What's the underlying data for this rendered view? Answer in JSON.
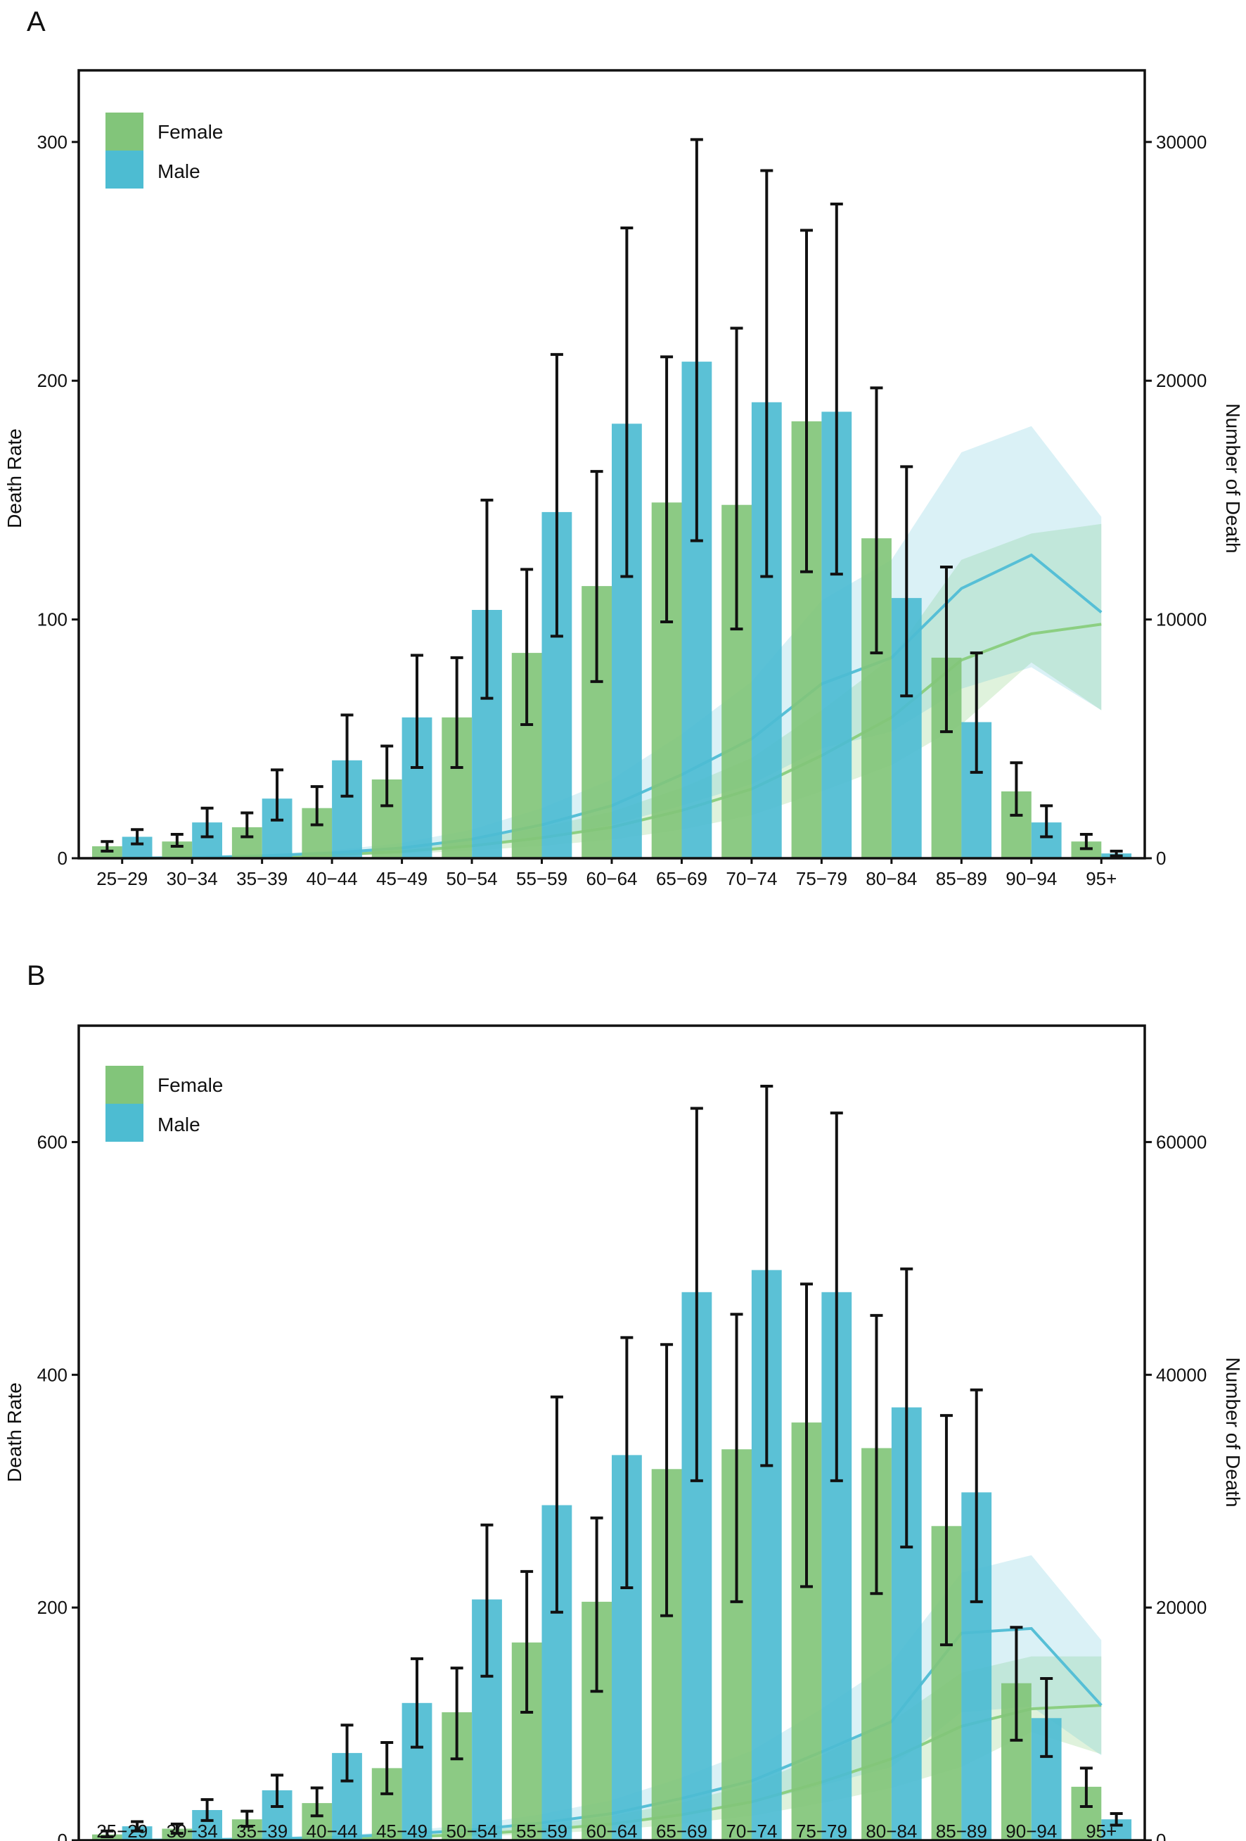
{
  "chart_data": [
    {
      "panel_label": "A",
      "type": "bar",
      "categories": [
        "25−29",
        "30−34",
        "35−39",
        "40−44",
        "45−49",
        "50−54",
        "55−59",
        "60−64",
        "65−69",
        "70−74",
        "75−79",
        "80−84",
        "85−89",
        "90−94",
        "95+"
      ],
      "ylabel": "Death Rate",
      "ylabel_right": "Number of Death",
      "ylim": [
        0,
        330
      ],
      "yticks": [
        0,
        100,
        200,
        300
      ],
      "ylim_right": [
        0,
        33000
      ],
      "yticks_right": [
        0,
        10000,
        20000,
        30000
      ],
      "legend": {
        "position": "top-left",
        "entries": [
          "Female",
          "Male"
        ]
      },
      "colors": {
        "female_bar": "#82c57a",
        "male_bar": "#4dbcd2",
        "female_line": "#8ccf82",
        "male_line": "#56bfd6",
        "error_bar": "#111111"
      },
      "series": [
        {
          "name": "Female",
          "values": [
            5,
            7,
            13,
            21,
            33,
            59,
            86,
            114,
            149,
            148,
            183,
            134,
            84,
            28,
            7
          ],
          "lower": [
            3,
            5,
            9,
            14,
            22,
            38,
            56,
            74,
            99,
            96,
            120,
            86,
            53,
            18,
            4
          ],
          "upper": [
            7,
            10,
            19,
            30,
            47,
            84,
            121,
            162,
            210,
            222,
            263,
            197,
            122,
            40,
            10
          ]
        },
        {
          "name": "Male",
          "values": [
            9,
            15,
            25,
            41,
            59,
            104,
            145,
            182,
            208,
            191,
            187,
            109,
            57,
            15,
            2
          ],
          "lower": [
            6,
            9,
            16,
            26,
            38,
            67,
            93,
            118,
            133,
            118,
            119,
            68,
            36,
            9,
            1
          ],
          "upper": [
            12,
            21,
            37,
            60,
            85,
            150,
            211,
            264,
            301,
            288,
            274,
            164,
            86,
            22,
            3
          ]
        }
      ],
      "line_series": [
        {
          "name": "Female",
          "values": [
            0,
            20,
            60,
            140,
            280,
            520,
            860,
            1300,
            2000,
            2900,
            4300,
            5900,
            8300,
            9400,
            9800
          ],
          "lower": [
            0,
            12,
            40,
            90,
            180,
            320,
            520,
            780,
            1200,
            1800,
            2800,
            3900,
            5600,
            8200,
            6200
          ],
          "upper": [
            0,
            30,
            90,
            210,
            420,
            780,
            1300,
            1950,
            2950,
            4200,
            6200,
            8400,
            12500,
            13600,
            14000
          ]
        },
        {
          "name": "Male",
          "values": [
            0,
            30,
            100,
            220,
            430,
            800,
            1400,
            2200,
            3500,
            5000,
            7300,
            8400,
            11300,
            12700,
            10300
          ],
          "lower": [
            0,
            18,
            60,
            140,
            270,
            500,
            880,
            1400,
            2200,
            3100,
            4600,
            5300,
            7100,
            8000,
            6200
          ],
          "upper": [
            0,
            45,
            150,
            330,
            640,
            1200,
            2100,
            3300,
            5200,
            7400,
            10800,
            12500,
            17000,
            18100,
            14300
          ]
        }
      ]
    },
    {
      "panel_label": "B",
      "type": "bar",
      "categories": [
        "25−29",
        "30−34",
        "35−39",
        "40−44",
        "45−49",
        "50−54",
        "55−59",
        "60−64",
        "65−69",
        "70−74",
        "75−79",
        "80−84",
        "85−89",
        "90−94",
        "95+"
      ],
      "ylabel": "Death Rate",
      "ylabel_right": "Number of Death",
      "ylim": [
        0,
        700
      ],
      "yticks": [
        0,
        200,
        400,
        600
      ],
      "ylim_right": [
        0,
        70000
      ],
      "yticks_right": [
        0,
        20000,
        40000,
        60000
      ],
      "legend": {
        "position": "top-left",
        "entries": [
          "Female",
          "Male"
        ]
      },
      "colors": {
        "female_bar": "#82c57a",
        "male_bar": "#4dbcd2",
        "female_line": "#8ccf82",
        "male_line": "#56bfd6",
        "error_bar": "#111111"
      },
      "series": [
        {
          "name": "Female",
          "values": [
            5,
            10,
            18,
            32,
            62,
            110,
            170,
            205,
            319,
            336,
            359,
            337,
            270,
            135,
            46
          ],
          "lower": [
            3,
            6,
            12,
            21,
            40,
            70,
            110,
            128,
            193,
            205,
            218,
            212,
            168,
            86,
            29
          ],
          "upper": [
            8,
            14,
            25,
            45,
            84,
            148,
            231,
            277,
            426,
            452,
            478,
            451,
            365,
            183,
            62
          ]
        },
        {
          "name": "Male",
          "values": [
            12,
            26,
            43,
            75,
            118,
            207,
            288,
            331,
            471,
            490,
            471,
            372,
            299,
            105,
            18
          ],
          "lower": [
            8,
            17,
            29,
            51,
            80,
            141,
            196,
            217,
            309,
            322,
            309,
            252,
            205,
            72,
            13
          ],
          "upper": [
            16,
            35,
            56,
            99,
            156,
            271,
            381,
            432,
            629,
            648,
            625,
            491,
            387,
            139,
            23
          ]
        }
      ],
      "line_series": [
        {
          "name": "Female",
          "values": [
            0,
            20,
            60,
            130,
            270,
            520,
            900,
            1400,
            2200,
            3300,
            5000,
            7000,
            9800,
            11300,
            11600
          ],
          "lower": [
            0,
            12,
            40,
            80,
            170,
            320,
            560,
            880,
            1400,
            2100,
            3200,
            4500,
            6300,
            9300,
            7400
          ],
          "upper": [
            0,
            30,
            90,
            200,
            400,
            770,
            1330,
            2080,
            3260,
            4800,
            7300,
            10200,
            14400,
            15800,
            15800
          ]
        },
        {
          "name": "Male",
          "values": [
            0,
            40,
            120,
            260,
            520,
            900,
            1500,
            2300,
            3600,
            5100,
            7600,
            10200,
            17800,
            18200,
            11600
          ],
          "lower": [
            0,
            25,
            75,
            160,
            320,
            560,
            930,
            1430,
            2240,
            3200,
            4700,
            6300,
            11000,
            11500,
            7300
          ],
          "upper": [
            0,
            60,
            180,
            390,
            780,
            1350,
            2250,
            3450,
            5400,
            7700,
            11300,
            15300,
            23000,
            24500,
            17200
          ]
        }
      ]
    }
  ]
}
